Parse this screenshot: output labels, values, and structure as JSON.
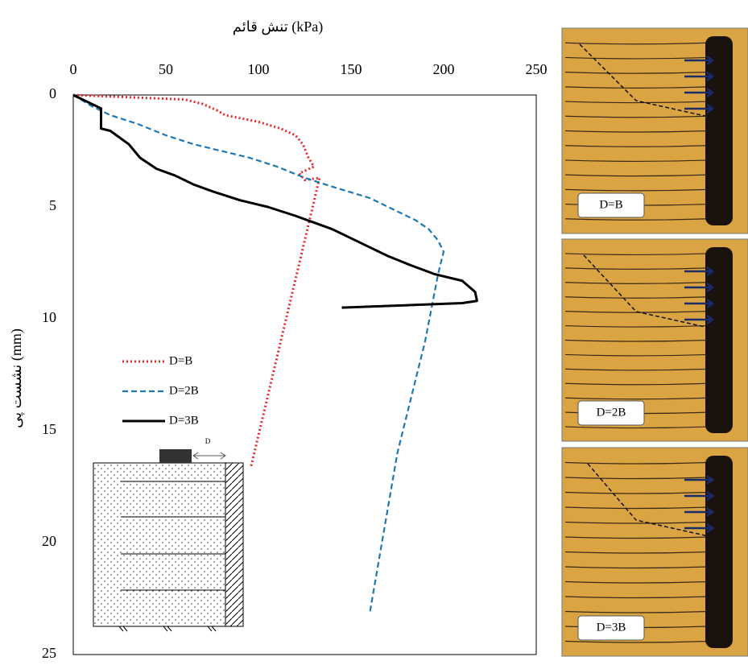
{
  "chart_data": {
    "type": "line",
    "x_label": "تنش قائم (kPa)",
    "y_label": "نشست پی (mm)",
    "xlim": [
      0,
      250
    ],
    "xticks": [
      0,
      50,
      100,
      150,
      200,
      250
    ],
    "ylim": [
      0,
      25
    ],
    "yticks": [
      0,
      5,
      10,
      15,
      20,
      25
    ],
    "y_reversed": true,
    "x_axis_position": "top",
    "series": [
      {
        "name": "D=B",
        "color": "#e8262a",
        "dash": "dotted",
        "x": [
          0,
          30,
          60,
          70,
          78,
          82,
          100,
          112,
          120,
          124,
          127,
          130,
          122,
          125,
          133,
          96
        ],
        "values": [
          0,
          0.1,
          0.2,
          0.4,
          0.7,
          0.9,
          1.2,
          1.5,
          1.8,
          2.2,
          2.8,
          3.2,
          3.5,
          3.8,
          3.7,
          16.6
        ]
      },
      {
        "name": "D=2B",
        "color": "#1f78b4",
        "dash": "dashed",
        "x": [
          0,
          10,
          20,
          35,
          50,
          65,
          80,
          95,
          110,
          125,
          140,
          160,
          175,
          185,
          192,
          197,
          200,
          197,
          190,
          175,
          160
        ],
        "values": [
          0,
          0.5,
          0.9,
          1.3,
          1.8,
          2.2,
          2.5,
          2.8,
          3.2,
          3.7,
          4.1,
          4.6,
          5.2,
          5.6,
          6.0,
          6.5,
          7.0,
          8.0,
          11,
          16,
          23.2
        ]
      },
      {
        "name": "D=3B",
        "color": "#000000",
        "dash": "solid",
        "x": [
          0,
          15,
          15,
          20,
          30,
          36,
          45,
          55,
          65,
          75,
          90,
          105,
          120,
          130,
          140,
          150,
          160,
          170,
          182,
          195,
          210,
          217,
          218,
          210,
          145
        ],
        "values": [
          0,
          0.6,
          1.5,
          1.6,
          2.2,
          2.8,
          3.3,
          3.6,
          4.0,
          4.3,
          4.7,
          5.0,
          5.4,
          5.7,
          6.0,
          6.4,
          6.8,
          7.2,
          7.6,
          8.0,
          8.3,
          8.8,
          9.2,
          9.3,
          9.5
        ]
      }
    ]
  },
  "schematic_label": "D",
  "photo_labels": [
    "D=B",
    "D=2B",
    "D=3B"
  ]
}
